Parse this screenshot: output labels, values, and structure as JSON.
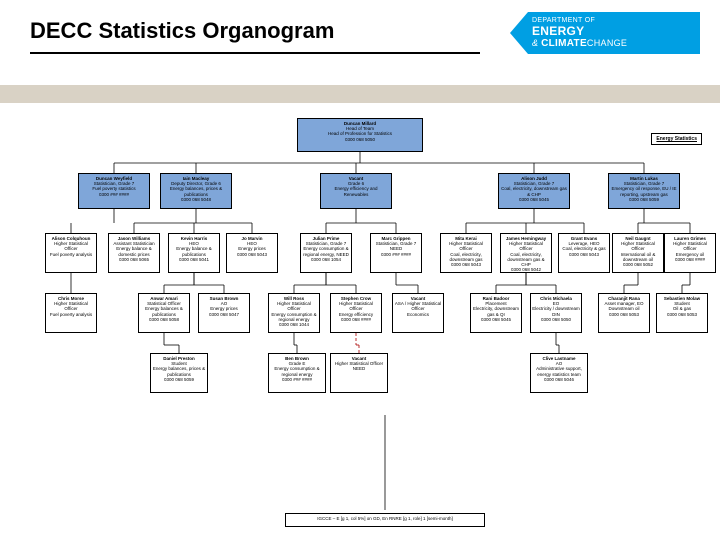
{
  "page": {
    "title": "DECC Statistics Organogram",
    "side_label": "Energy Statistics"
  },
  "logo": {
    "line1": "DEPARTMENT OF",
    "line2": "ENERGY",
    "line3a": "&",
    "line3b": "CLIMATE",
    "line3c": "CHANGE"
  },
  "colors": {
    "node_blue": "#7fa6d9",
    "node_white": "#ffffff",
    "band": "#d9d2c5",
    "logo_blue": "#009fe3"
  },
  "footer": {
    "text": "IGCCE – E [g 1, col 5%] on GD, En RNRE [g 1, role] 1 [semi-month]"
  },
  "root": {
    "name": "Duncan Millard",
    "role": "Head of Team",
    "unit": "Head of Profession for Statistics",
    "phone": "0300 068 5050"
  },
  "level2": [
    {
      "name": "Duncan Weyfield",
      "role": "Statistician, Grade 7",
      "unit": "Fuel poverty statistics",
      "phone": "0300 ### ####",
      "blue": true
    },
    {
      "name": "Iain Macleay",
      "role": "Deputy Director, Grade 6",
      "unit": "Energy balances, prices & publications",
      "phone": "0300 068 5048",
      "blue": true
    },
    {
      "name": "Vacant",
      "role": "Grade 6",
      "unit": "Energy efficiency and Renewables",
      "phone": "",
      "blue": true
    },
    {
      "name": "Alison Judd",
      "role": "Statistician, Grade 7",
      "unit": "Coal, electricity, downstream gas & CHP",
      "phone": "0300 068 5045",
      "blue": true
    },
    {
      "name": "Martin Lukas",
      "role": "Statistician, Grade 7",
      "unit": "Emergency oil response, EU / IE reporting, upstream gas",
      "phone": "0300 068 5059",
      "blue": true
    }
  ],
  "level3": [
    {
      "parent": 0,
      "name": "Alison Colquhoun",
      "role": "Higher Statistical Officer",
      "unit": "Fuel poverty analysis",
      "phone": ""
    },
    {
      "parent": 1,
      "name": "Jason Williams",
      "role": "Assistant Statistician",
      "unit": "Energy balance & domestic prices",
      "phone": "0300 068 5065"
    },
    {
      "parent": 1,
      "name": "Kevin Harris",
      "role": "HEO",
      "unit": "Energy balance & publications",
      "phone": "0300 068 5041"
    },
    {
      "parent": 1,
      "name": "Jo Marvin",
      "role": "HEO",
      "unit": "Energy prices",
      "phone": "0300 068 5043"
    },
    {
      "parent": 2,
      "name": "Julian Prime",
      "role": "Statistician, Grade 7",
      "unit": "Energy consumption & regional energy, NEED",
      "phone": "0300 068 1054"
    },
    {
      "parent": 2,
      "name": "Marc Grippen",
      "role": "Statistician, Grade 7",
      "unit": "NEED",
      "phone": "0300 ### ####"
    },
    {
      "parent": 3,
      "name": "Mita Kerai",
      "role": "Higher Statistical Officer",
      "unit": "Coal, electricity, downstream gas",
      "phone": "0300 068 5043"
    },
    {
      "parent": 3,
      "name": "James Hemingway",
      "role": "Higher Statistical Officer",
      "unit": "Coal, electricity, downstream gas & CHP",
      "phone": "0300 068 5042"
    },
    {
      "parent": 3,
      "name": "Grant Evans",
      "role": "Leverage, HEO",
      "unit": "Coal, electricity & gas",
      "phone": "0300 068 5043"
    },
    {
      "parent": 4,
      "name": "Neil Gaugnt",
      "role": "Higher Statistical Officer",
      "unit": "International oil & downstream oil",
      "phone": "0300 068 5052"
    },
    {
      "parent": 4,
      "name": "Lauren Grimes",
      "role": "Higher Statistical Officer",
      "unit": "Emergency oil",
      "phone": "0300 068 ####"
    }
  ],
  "level4": [
    {
      "col": 0,
      "name": "Chris Morse",
      "role": "Higher Statistical Officer",
      "unit": "Fuel poverty analysis",
      "phone": ""
    },
    {
      "col": 1,
      "name": "Anwar Amari",
      "role": "Statistical Officer",
      "unit": "Energy balances & publications",
      "phone": "0300 068 5058"
    },
    {
      "col": 2,
      "name": "Susan Brown",
      "role": "AO",
      "unit": "Energy prices",
      "phone": "0300 068 5047"
    },
    {
      "col": 3,
      "name": "Will Ross",
      "role": "Higher Statistical Officer",
      "unit": "Energy consumption & regional energy",
      "phone": "0300 068 1044"
    },
    {
      "col": 4,
      "name": "Stephen Crow",
      "role": "Higher Statistical Officer",
      "unit": "Energy efficiency",
      "phone": "0300 068 ####"
    },
    {
      "col": 5,
      "name": "Vacant",
      "role": "ASA / Higher Statistical Officer",
      "unit": "Economics",
      "phone": ""
    },
    {
      "col": 6,
      "name": "Rani Badoor",
      "role": "Placement",
      "unit": "Electricity, downstream gas & QI",
      "phone": "0300 068 5045"
    },
    {
      "col": 7,
      "name": "Chris Michaela",
      "role": "EO",
      "unit": "Electricity / downstream DIN",
      "phone": "0300 068 5050"
    },
    {
      "col": 8,
      "name": "Charanjit Rana",
      "role": "Asset manager, EO",
      "unit": "Downstream oil",
      "phone": "0300 068 5053"
    },
    {
      "col": 9,
      "name": "Sebastien Molaw",
      "role": "Student",
      "unit": "Oil & gas",
      "phone": "0300 068 5053"
    }
  ],
  "level5": [
    {
      "col": 1,
      "name": "Daniel Preston",
      "role": "Student",
      "unit": "Energy balances, prices & publications",
      "phone": "0300 068 5059"
    },
    {
      "col": 3,
      "name": "Ben Brown",
      "role": "Grade E",
      "unit": "Energy consumption & regional energy",
      "phone": "0300 ### ####"
    },
    {
      "col": 4,
      "name": "Vacant",
      "role": "Higher Statistical Officer",
      "unit": "NEED",
      "phone": "",
      "dashed": true
    },
    {
      "col": 7,
      "name": "Clive Lastname",
      "role": "AO",
      "unit": "Administrative support, energy statistics team",
      "phone": "0300 068 5046"
    }
  ]
}
